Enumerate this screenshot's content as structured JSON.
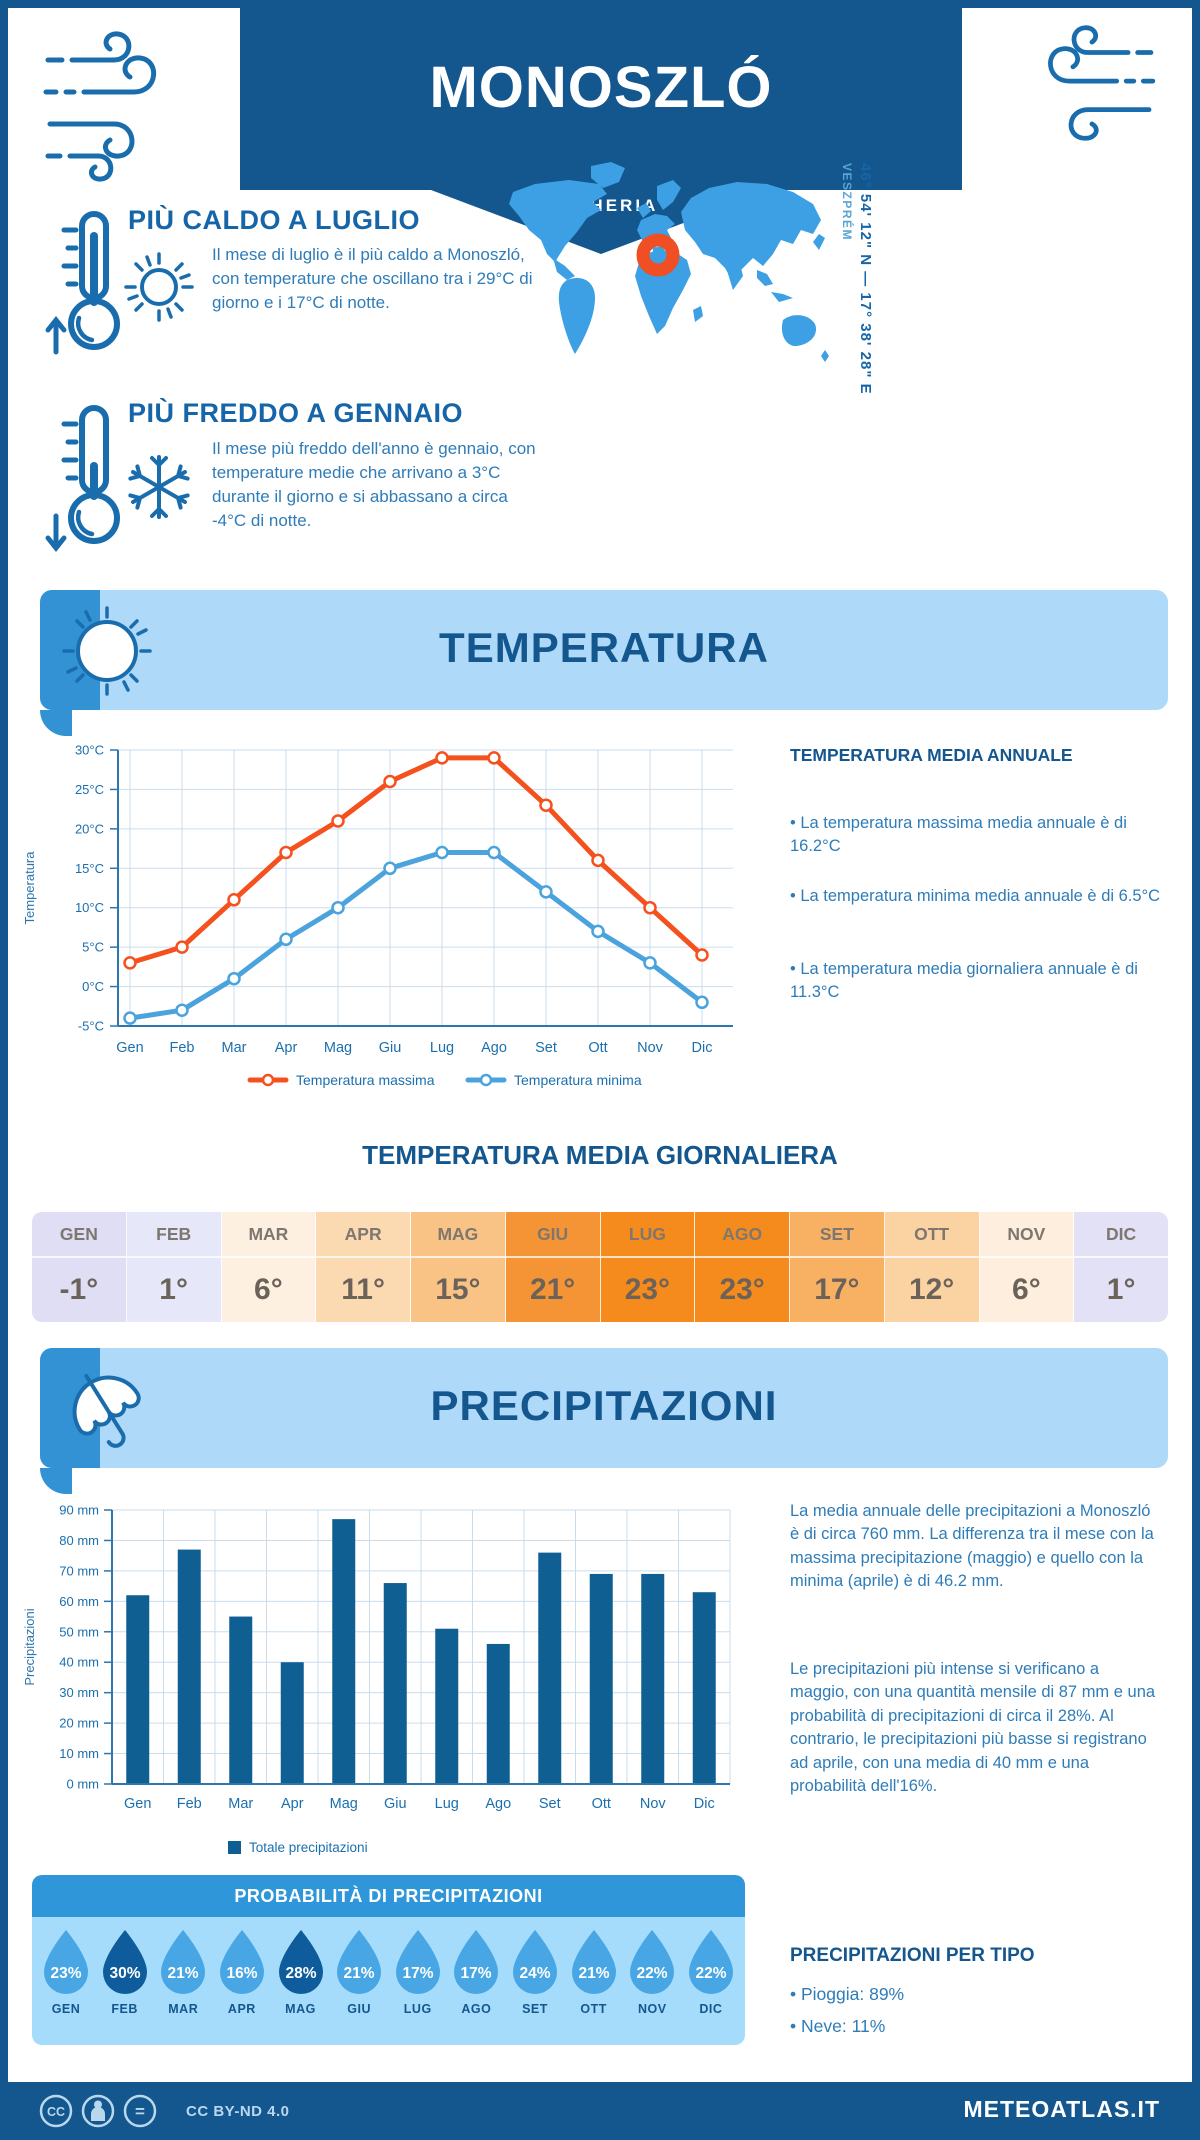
{
  "header": {
    "title": "MONOSZLÓ",
    "subtitle": "UNGHERIA"
  },
  "intro": {
    "warm": {
      "heading": "PIÙ CALDO A LUGLIO",
      "text": "Il mese di luglio è il più caldo a Monoszló, con temperature che oscillano tra i 29°C di giorno e i 17°C di notte."
    },
    "cold": {
      "heading": "PIÙ FREDDO A GENNAIO",
      "text": "Il mese più freddo dell'anno è gennaio, con temperature medie che arrivano a 3°C durante il giorno e si abbassano a circa -4°C di notte."
    }
  },
  "map": {
    "coords": "46° 54' 12\" N — 17° 38' 28\" E",
    "region": "VESZPRÉM"
  },
  "sections": {
    "temperature": "TEMPERATURA",
    "precipitation": "PRECIPITAZIONI"
  },
  "annual": {
    "heading": "TEMPERATURA MEDIA ANNUALE",
    "bullets": [
      "• La temperatura massima media annuale è di 16.2°C",
      "• La temperatura minima media annuale è di 6.5°C",
      "• La temperatura media giornaliera annuale è di 11.3°C"
    ]
  },
  "daily_table": {
    "heading": "TEMPERATURA MEDIA GIORNALIERA",
    "months": [
      "GEN",
      "FEB",
      "MAR",
      "APR",
      "MAG",
      "GIU",
      "LUG",
      "AGO",
      "SET",
      "OTT",
      "NOV",
      "DIC"
    ],
    "values": [
      "-1°",
      "1°",
      "6°",
      "11°",
      "15°",
      "21°",
      "23°",
      "23°",
      "17°",
      "12°",
      "6°",
      "1°"
    ],
    "cell_colors": [
      "#dfdef5",
      "#e7e7fa",
      "#fdf0e1",
      "#fbd9b1",
      "#fac386",
      "#f49434",
      "#f68b1d",
      "#f68b1d",
      "#f8b063",
      "#fbd3a2",
      "#fdeedd",
      "#e2e1f6"
    ]
  },
  "precip_text": {
    "p1": "La media annuale delle precipitazioni a Monoszló è di circa 760 mm. La differenza tra il mese con la massima precipitazione (maggio) e quello con la minima (aprile) è di 46.2 mm.",
    "p2": "Le precipitazioni più intense si verificano a maggio, con una quantità mensile di 87 mm e una probabilità di precipitazioni di circa il 28%. Al contrario, le precipitazioni più basse si registrano ad aprile, con una media di 40 mm e una probabilità dell'16%."
  },
  "probability": {
    "heading": "PROBABILITÀ DI PRECIPITAZIONI",
    "months": [
      "GEN",
      "FEB",
      "MAR",
      "APR",
      "MAG",
      "GIU",
      "LUG",
      "AGO",
      "SET",
      "OTT",
      "NOV",
      "DIC"
    ],
    "values": [
      23,
      30,
      21,
      16,
      28,
      21,
      17,
      17,
      24,
      21,
      22,
      22
    ],
    "dark": [
      false,
      true,
      false,
      false,
      true,
      false,
      false,
      false,
      false,
      false,
      false,
      false
    ]
  },
  "per_type": {
    "heading": "PRECIPITAZIONI PER TIPO",
    "items": [
      "• Pioggia: 89%",
      "• Neve: 11%"
    ]
  },
  "footer": {
    "license": "CC BY-ND 4.0",
    "site": "METEOATLAS.IT"
  },
  "colors": {
    "primary_dark": "#14568e",
    "banner_light": "#aed9f8",
    "tab_blue": "#3292d4",
    "map_blue": "#3da0e4",
    "marker_orange": "#f04e23",
    "droplet": "#47a6e3",
    "droplet_dark": "#0e5c9c",
    "axis_label": "#1b6fae"
  },
  "chart_data": [
    {
      "type": "line",
      "title": "",
      "categories": [
        "Gen",
        "Feb",
        "Mar",
        "Apr",
        "Mag",
        "Giu",
        "Lug",
        "Ago",
        "Set",
        "Ott",
        "Nov",
        "Dic"
      ],
      "series": [
        {
          "name": "Temperatura massima",
          "color": "#f4511e",
          "values": [
            3,
            5,
            11,
            17,
            21,
            26,
            29,
            29,
            23,
            16,
            10,
            4
          ]
        },
        {
          "name": "Temperatura minima",
          "color": "#4aa3dd",
          "values": [
            -4,
            -3,
            1,
            6,
            10,
            15,
            17,
            17,
            12,
            7,
            3,
            -2
          ]
        }
      ],
      "ylabel": "Temperatura",
      "ylim": [
        -5,
        30
      ],
      "ytick_step": 5,
      "ytick_suffix": "°C",
      "grid": true,
      "legend_position": "bottom"
    },
    {
      "type": "bar",
      "title": "",
      "categories": [
        "Gen",
        "Feb",
        "Mar",
        "Apr",
        "Mag",
        "Giu",
        "Lug",
        "Ago",
        "Set",
        "Ott",
        "Nov",
        "Dic"
      ],
      "values": [
        62,
        77,
        55,
        40,
        87,
        66,
        51,
        46,
        76,
        69,
        69,
        63
      ],
      "legend": "Totale precipitazioni",
      "ylabel": "Precipitazioni",
      "ylim": [
        0,
        90
      ],
      "ytick_step": 10,
      "ytick_suffix": " mm",
      "bar_color": "#0f5f93",
      "grid": true,
      "legend_position": "bottom"
    }
  ]
}
